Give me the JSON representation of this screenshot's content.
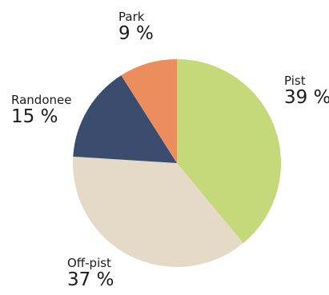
{
  "chart_data": {
    "type": "pie",
    "title": "",
    "start_angle_deg": 0,
    "direction": "clockwise",
    "slices": [
      {
        "label": "Pist",
        "value": 39,
        "value_label": "39 %",
        "color": "#c5d87a"
      },
      {
        "label": "Off-pist",
        "value": 37,
        "value_label": "37 %",
        "color": "#e5dac8"
      },
      {
        "label": "Randonee",
        "value": 15,
        "value_label": "15 %",
        "color": "#3c4c6e"
      },
      {
        "label": "Park",
        "value": 9,
        "value_label": "9 %",
        "color": "#ec8d5e"
      }
    ],
    "legend": "none",
    "labels_placement": "outside"
  }
}
